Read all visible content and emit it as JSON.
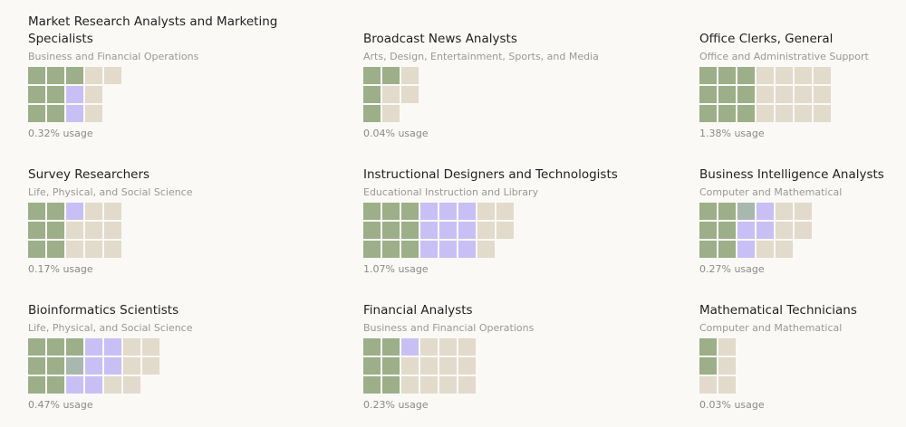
{
  "cards": [
    {
      "title": "Market Research Analysts and Marketing Specialists",
      "category": "Business and Financial Operations",
      "usage": "0.32% usage",
      "grid": [
        "gggbb",
        "ggpb",
        "ggpb"
      ]
    },
    {
      "title": "Broadcast News Analysts",
      "category": "Arts, Design, Entertainment, Sports, and Media",
      "usage": "0.04% usage",
      "grid": [
        "ggb",
        "gbb",
        "gb"
      ]
    },
    {
      "title": "Office Clerks, General",
      "category": "Office and Administrative Support",
      "usage": "1.38% usage",
      "grid": [
        "gggbbbb",
        "gggbbbb",
        "gggbbbb"
      ]
    },
    {
      "title": "Survey Researchers",
      "category": "Life, Physical, and Social Science",
      "usage": "0.17% usage",
      "grid": [
        "ggpbb",
        "ggbbb",
        "ggbbb"
      ]
    },
    {
      "title": "Instructional Designers and Technologists",
      "category": "Educational Instruction and Library",
      "usage": "1.07% usage",
      "grid": [
        "gggpppbb",
        "gggpppbb",
        "gggpppb"
      ]
    },
    {
      "title": "Business Intelligence Analysts",
      "category": "Computer and Mathematical",
      "usage": "0.27% usage",
      "grid": [
        "ggmpbb",
        "ggppbb",
        "ggpbb"
      ]
    },
    {
      "title": "Bioinformatics Scientists",
      "category": "Life, Physical, and Social Science",
      "usage": "0.47% usage",
      "grid": [
        "gggppbb",
        "ggmppbb",
        "ggppbb"
      ]
    },
    {
      "title": "Financial Analysts",
      "category": "Business and Financial Operations",
      "usage": "0.23% usage",
      "grid": [
        "ggpbbb",
        "ggbbbb",
        "ggbbbb"
      ]
    },
    {
      "title": "Mathematical Technicians",
      "category": "Computer and Mathematical",
      "usage": "0.03% usage",
      "grid": [
        "gb",
        "gb",
        "bb"
      ]
    }
  ],
  "legend_colors": {
    "g": "#9caf88",
    "p": "#c8c0f5",
    "b": "#e2dacb",
    "m": "#a9b8ae"
  }
}
